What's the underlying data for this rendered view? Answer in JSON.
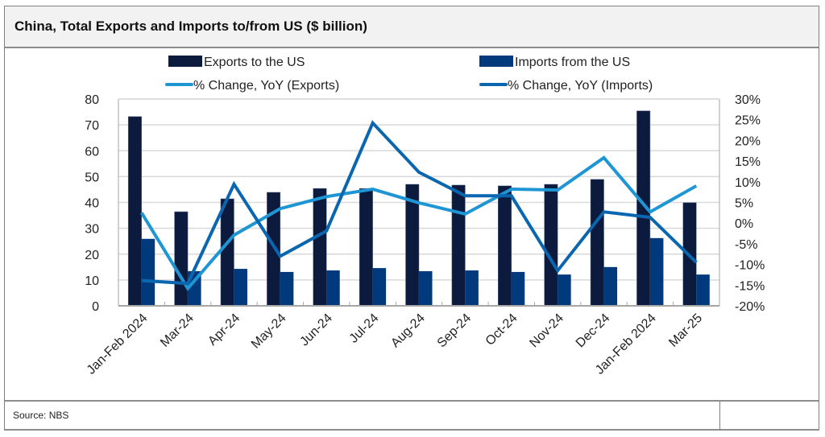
{
  "header": {
    "title": "China, Total Exports and Imports to/from US ($ billion)"
  },
  "footer": {
    "source": "Source: NBS"
  },
  "colors": {
    "exports_bar": "#0c1a3e",
    "imports_bar": "#003a7d",
    "exports_line": "#1f96d4",
    "imports_line": "#0a66ae",
    "grid": "#d9d9d9",
    "axis": "#a6a6a6"
  },
  "chart_data": {
    "type": "bar",
    "title": "China, Total Exports and Imports to/from US ($ billion)",
    "xlabel": "",
    "ylabel": "",
    "y2label": "",
    "categories": [
      "Jan-Feb 2024",
      "Mar-24",
      "Apr-24",
      "May-24",
      "Jun-24",
      "Jul-24",
      "Aug-24",
      "Sep-24",
      "Oct-24",
      "Nov-24",
      "Dec-24",
      "Jan-Feb 2024",
      "Mar-25"
    ],
    "ylim": [
      0,
      80
    ],
    "yticks": [
      0,
      10,
      20,
      30,
      40,
      50,
      60,
      70,
      80
    ],
    "y2lim": [
      -20,
      30
    ],
    "y2ticks": [
      "-20%",
      "-15%",
      "-10%",
      "-5%",
      "0%",
      "5%",
      "10%",
      "15%",
      "20%",
      "25%",
      "30%"
    ],
    "y2tick_values": [
      -20,
      -15,
      -10,
      -5,
      0,
      5,
      10,
      15,
      20,
      25,
      30
    ],
    "grid": true,
    "legend_position": "top",
    "series": [
      {
        "name": "Exports to the US",
        "type": "bar",
        "axis": "left",
        "values": [
          73.2,
          36.4,
          41.4,
          43.9,
          45.4,
          45.4,
          47.0,
          46.7,
          46.4,
          47.0,
          48.9,
          75.4,
          39.9
        ]
      },
      {
        "name": "Imports from the US",
        "type": "bar",
        "axis": "left",
        "values": [
          25.9,
          13.4,
          14.3,
          13.1,
          13.7,
          14.6,
          13.4,
          13.7,
          13.1,
          12.1,
          15.0,
          26.2,
          12.1
        ]
      },
      {
        "name": "% Change, YoY (Exports)",
        "type": "line",
        "axis": "right",
        "values": [
          2.5,
          -15.8,
          -2.9,
          3.5,
          6.4,
          8.2,
          4.9,
          2.2,
          8.2,
          8.0,
          15.8,
          2.7,
          9.0
        ]
      },
      {
        "name": "% Change, YoY (Imports)",
        "type": "line",
        "axis": "right",
        "values": [
          -13.9,
          -14.6,
          9.4,
          -8.0,
          -1.9,
          24.2,
          12.3,
          6.6,
          6.6,
          -11.5,
          2.7,
          1.4,
          -9.5
        ]
      }
    ]
  }
}
